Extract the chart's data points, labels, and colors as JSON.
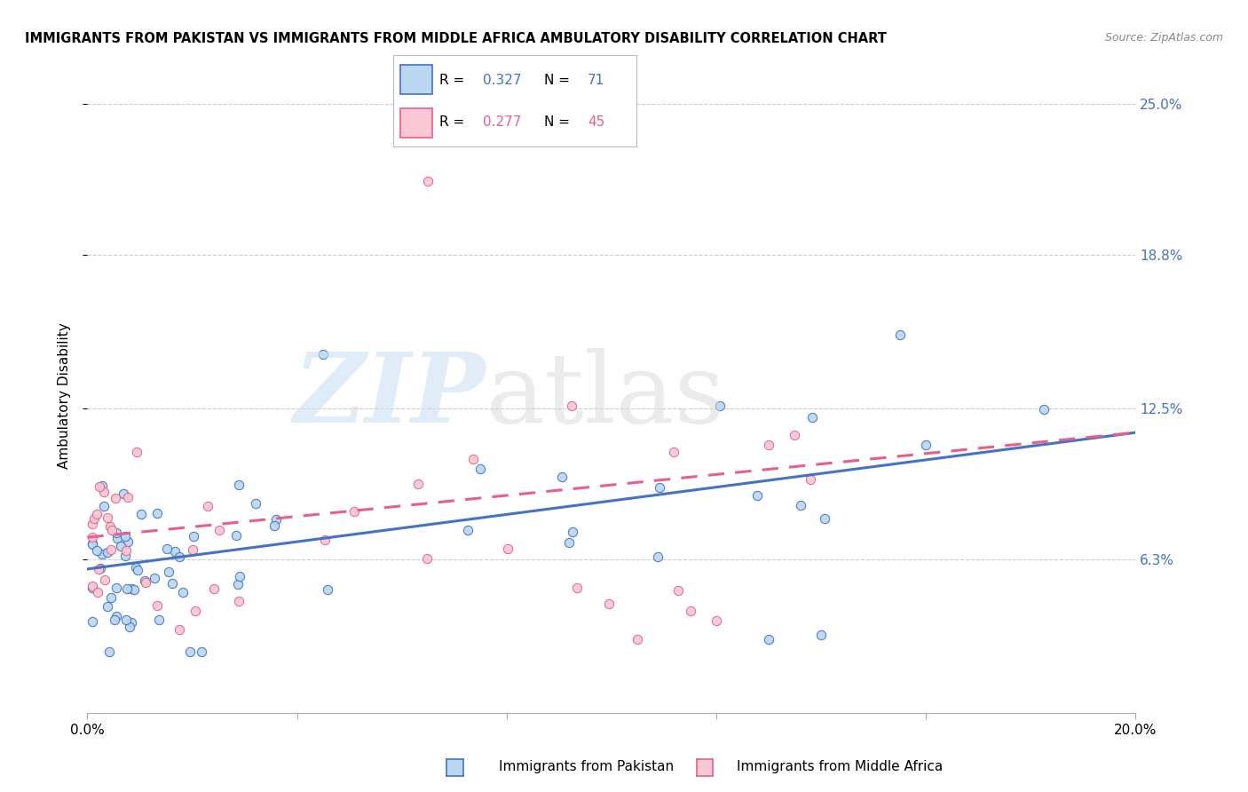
{
  "title": "IMMIGRANTS FROM PAKISTAN VS IMMIGRANTS FROM MIDDLE AFRICA AMBULATORY DISABILITY CORRELATION CHART",
  "source": "Source: ZipAtlas.com",
  "ylabel": "Ambulatory Disability",
  "ytick_vals": [
    0.063,
    0.125,
    0.188,
    0.25
  ],
  "ytick_labels": [
    "6.3%",
    "12.5%",
    "18.8%",
    "25.0%"
  ],
  "xlim": [
    0.0,
    0.2
  ],
  "ylim": [
    0.0,
    0.26
  ],
  "color_pakistan_fill": "#bad6f0",
  "color_pakistan_edge": "#4472c4",
  "color_africa_fill": "#f9c8d4",
  "color_africa_edge": "#e8608a",
  "color_blue": "#4472c4",
  "color_pink": "#e8608a",
  "color_right_axis": "#4472c4",
  "legend_r1": "0.327",
  "legend_n1": "71",
  "legend_r2": "0.277",
  "legend_n2": "45",
  "pak_intercept": 0.058,
  "pak_slope": 0.28,
  "maf_intercept": 0.068,
  "maf_slope": 0.18
}
